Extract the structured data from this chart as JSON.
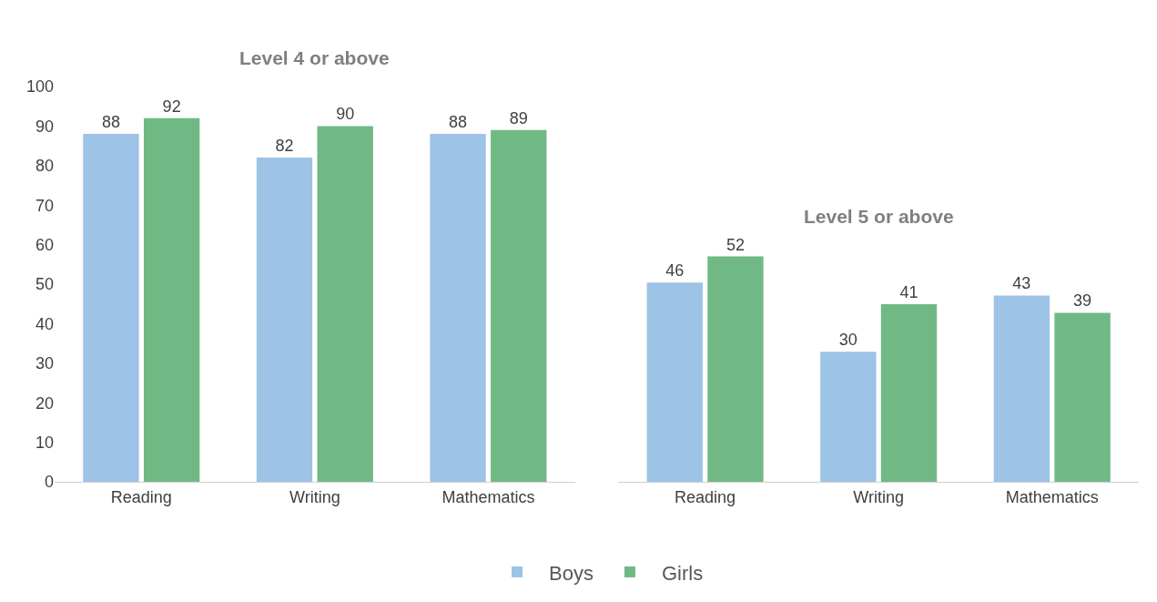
{
  "chart_data": [
    {
      "type": "bar",
      "title": "Level 4 or above",
      "categories": [
        "Reading",
        "Writing",
        "Mathematics"
      ],
      "series": [
        {
          "name": "Boys",
          "color": "#9dc3e6",
          "values": [
            88,
            82,
            88
          ]
        },
        {
          "name": "Girls",
          "color": "#70b984",
          "values": [
            92,
            90,
            89
          ]
        }
      ],
      "ylim": [
        0,
        100
      ],
      "yticks": [
        0,
        10,
        20,
        30,
        40,
        50,
        60,
        70,
        80,
        90,
        100
      ],
      "data_labels": true,
      "legend": "bottom"
    },
    {
      "type": "bar",
      "title": "Level 5 or above",
      "categories": [
        "Reading",
        "Writing",
        "Mathematics"
      ],
      "series": [
        {
          "color": "#9dc3e6",
          "values": [
            46,
            30,
            43
          ]
        },
        {
          "color": "#70b984",
          "values": [
            52,
            41,
            39
          ]
        }
      ],
      "tick_labels": "x",
      "data_labels": true
    }
  ]
}
